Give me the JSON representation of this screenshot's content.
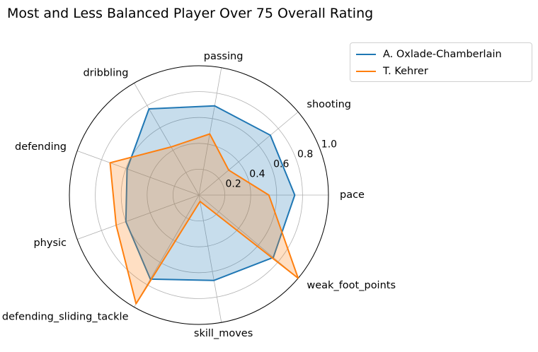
{
  "chart_data": {
    "type": "radar",
    "title": "Most and Less Balanced Player Over 75 Overall Rating",
    "axes": [
      "pace",
      "shooting",
      "passing",
      "dribbling",
      "defending",
      "physic",
      "defending_sliding_tackle",
      "skill_moves",
      "weak_foot_points"
    ],
    "rlim": [
      0,
      1.0
    ],
    "radial_ticks": [
      0.2,
      0.4,
      0.6,
      0.8,
      1.0
    ],
    "radial_tick_labels": [
      "0.2",
      "0.4",
      "0.6",
      "0.8",
      "1.0"
    ],
    "grid": true,
    "legend_position": "top-right",
    "series": [
      {
        "name": "A. Oxlade-Chamberlain",
        "color": "#1f77b4",
        "fill": "#1f77b4",
        "values": [
          0.74,
          0.72,
          0.7,
          0.77,
          0.59,
          0.6,
          0.75,
          0.67,
          0.75
        ]
      },
      {
        "name": "T. Kehrer",
        "color": "#ff7f0e",
        "fill": "#ff7f0e",
        "values": [
          0.54,
          0.3,
          0.48,
          0.43,
          0.73,
          0.68,
          0.97,
          0.05,
          1.0
        ]
      }
    ]
  }
}
